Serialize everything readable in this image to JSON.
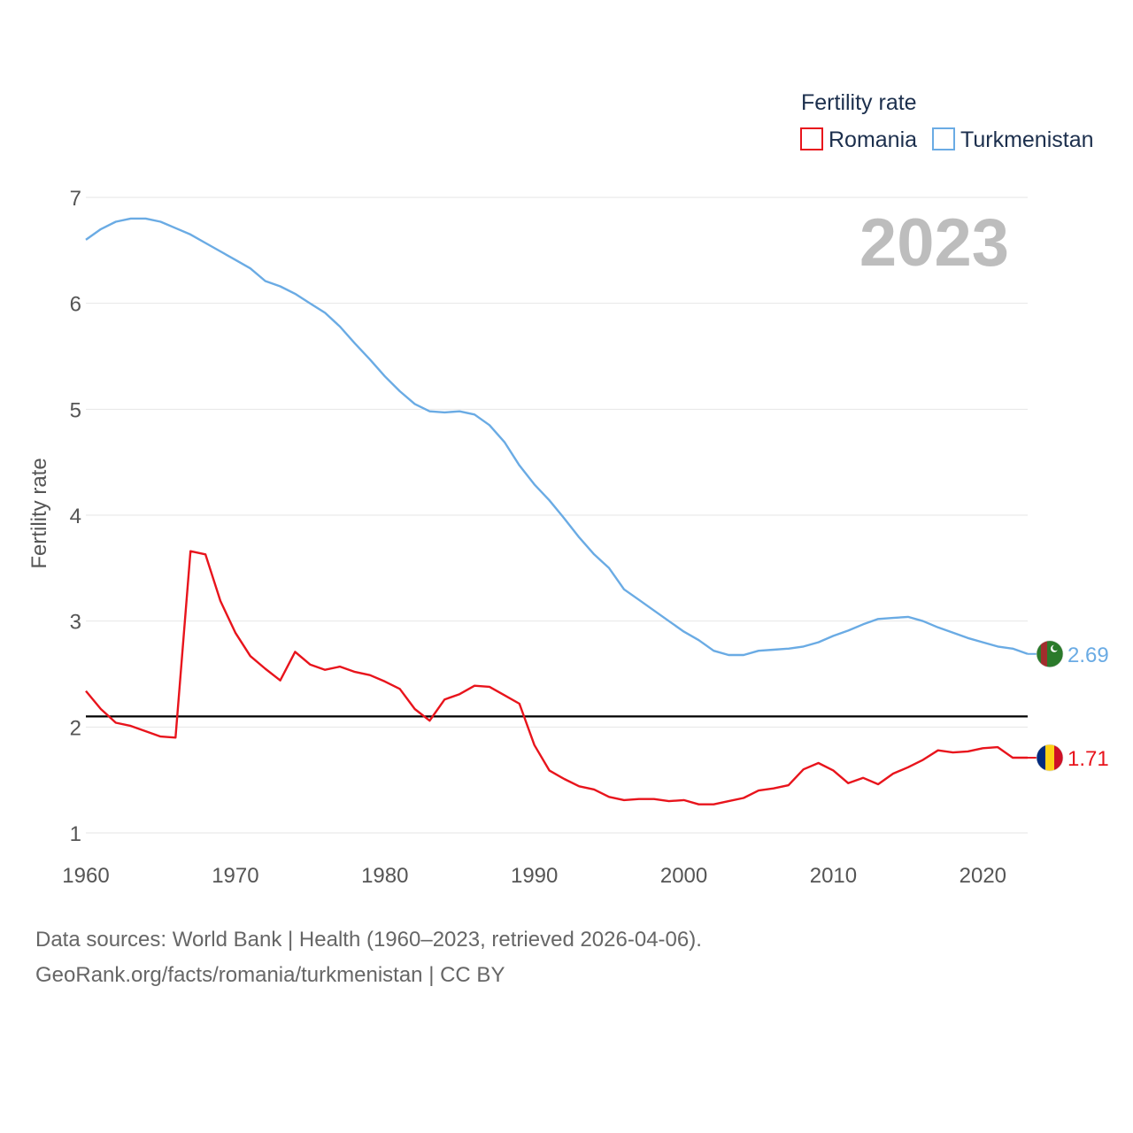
{
  "chart_data": {
    "type": "line",
    "title": "",
    "year_display": "2023",
    "xlabel": "",
    "ylabel": "Fertility rate",
    "xlim": [
      1960,
      2023
    ],
    "ylim": [
      1,
      7
    ],
    "x_ticks": [
      1960,
      1970,
      1980,
      1990,
      2000,
      2010,
      2020
    ],
    "x_tick_labels": [
      "1960",
      "1970",
      "1980",
      "1990",
      "2000",
      "2010",
      "2020"
    ],
    "y_ticks": [
      1,
      2,
      3,
      4,
      5,
      6,
      7
    ],
    "y_tick_labels": [
      "1",
      "2",
      "3",
      "4",
      "5",
      "6",
      "7"
    ],
    "grid": true,
    "legend": {
      "title": "Fertility rate",
      "placement": "top-right",
      "entries": [
        "Romania",
        "Turkmenistan"
      ]
    },
    "reference_line": {
      "value": 2.1,
      "color": "#000000"
    },
    "x": [
      1960,
      1961,
      1962,
      1963,
      1964,
      1965,
      1966,
      1967,
      1968,
      1969,
      1970,
      1971,
      1972,
      1973,
      1974,
      1975,
      1976,
      1977,
      1978,
      1979,
      1980,
      1981,
      1982,
      1983,
      1984,
      1985,
      1986,
      1987,
      1988,
      1989,
      1990,
      1991,
      1992,
      1993,
      1994,
      1995,
      1996,
      1997,
      1998,
      1999,
      2000,
      2001,
      2002,
      2003,
      2004,
      2005,
      2006,
      2007,
      2008,
      2009,
      2010,
      2011,
      2012,
      2013,
      2014,
      2015,
      2016,
      2017,
      2018,
      2019,
      2020,
      2021,
      2022,
      2023
    ],
    "series": [
      {
        "name": "Romania",
        "color": "#e8141c",
        "end_label": "1.71",
        "flag": "romania-flag",
        "values": [
          2.34,
          2.17,
          2.04,
          2.01,
          1.96,
          1.91,
          1.9,
          3.66,
          3.63,
          3.19,
          2.89,
          2.67,
          2.55,
          2.44,
          2.71,
          2.59,
          2.54,
          2.57,
          2.52,
          2.49,
          2.43,
          2.36,
          2.17,
          2.06,
          2.26,
          2.31,
          2.39,
          2.38,
          2.3,
          2.22,
          1.83,
          1.59,
          1.51,
          1.44,
          1.41,
          1.34,
          1.31,
          1.32,
          1.32,
          1.3,
          1.31,
          1.27,
          1.27,
          1.3,
          1.33,
          1.4,
          1.42,
          1.45,
          1.6,
          1.66,
          1.59,
          1.47,
          1.52,
          1.46,
          1.56,
          1.62,
          1.69,
          1.78,
          1.76,
          1.77,
          1.8,
          1.81,
          1.71,
          1.71
        ]
      },
      {
        "name": "Turkmenistan",
        "color": "#6aabe4",
        "end_label": "2.69",
        "flag": "turkmenistan-flag",
        "values": [
          6.6,
          6.7,
          6.77,
          6.8,
          6.8,
          6.77,
          6.71,
          6.65,
          6.57,
          6.49,
          6.41,
          6.33,
          6.21,
          6.16,
          6.09,
          6.0,
          5.91,
          5.78,
          5.62,
          5.47,
          5.31,
          5.17,
          5.05,
          4.98,
          4.97,
          4.98,
          4.95,
          4.85,
          4.69,
          4.47,
          4.29,
          4.14,
          3.97,
          3.79,
          3.63,
          3.5,
          3.3,
          3.2,
          3.1,
          3.0,
          2.9,
          2.82,
          2.72,
          2.68,
          2.68,
          2.72,
          2.73,
          2.74,
          2.76,
          2.8,
          2.86,
          2.91,
          2.97,
          3.02,
          3.03,
          3.04,
          3.0,
          2.94,
          2.89,
          2.84,
          2.8,
          2.76,
          2.74,
          2.69
        ]
      }
    ]
  },
  "footer": {
    "line1": "Data sources: World Bank | Health (1960–2023, retrieved 2026-04-06).",
    "line2": "GeoRank.org/facts/romania/turkmenistan | CC BY"
  }
}
